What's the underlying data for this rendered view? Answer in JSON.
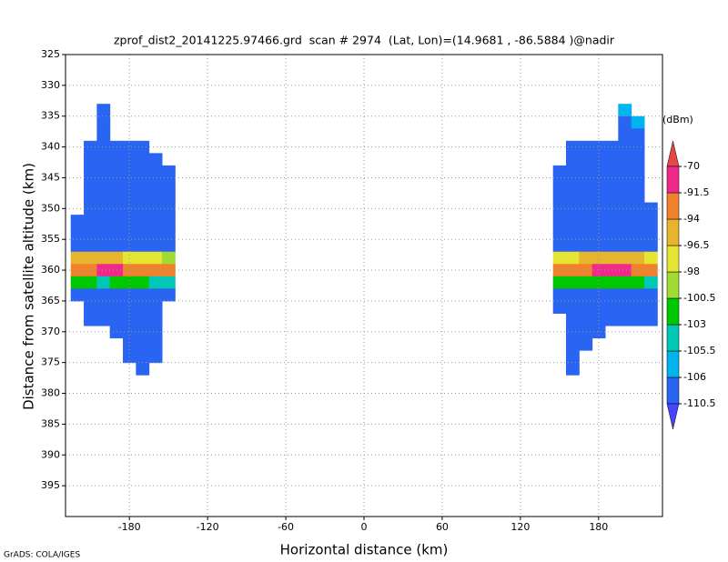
{
  "chart_data": {
    "type": "heatmap",
    "title": "zprof_dist2_20141225.97466.grd  scan # 2974  (Lat, Lon)=(14.9681 , -86.5884 )@nadir",
    "x_label": "Horizontal distance (km)",
    "y_label": "Distance from satellite altitude (km)",
    "footer": "GrADS: COLA/IGES",
    "colorbar_label": "(dBm)",
    "xlim": [
      -229,
      229
    ],
    "xticks": [
      -180,
      -120,
      -60,
      0,
      60,
      120,
      180
    ],
    "ylim": [
      325,
      400
    ],
    "y_inverted": true,
    "yticks": [
      325,
      330,
      335,
      340,
      345,
      350,
      355,
      360,
      365,
      370,
      375,
      380,
      385,
      390,
      395
    ],
    "grid": true,
    "levels": [
      -110.5,
      -106,
      -105.5,
      -103,
      -100.5,
      -98,
      -96.5,
      -94,
      -91.5,
      -70
    ],
    "colors": [
      "#4646ff",
      "#2a64f2",
      "#00b4f0",
      "#00c8b4",
      "#00c800",
      "#a0dc32",
      "#e6e632",
      "#e6b42d",
      "#f0822d",
      "#f0288c",
      "#e64646"
    ],
    "x": [
      -220,
      -210,
      -200,
      -190,
      -180,
      -170,
      -160,
      -150,
      150,
      160,
      170,
      180,
      190,
      200,
      210,
      220
    ],
    "y": [
      334,
      336,
      338,
      340,
      342,
      344,
      346,
      348,
      350,
      352,
      354,
      356,
      358,
      360,
      362,
      364,
      366,
      368,
      370,
      372,
      374,
      376
    ],
    "values": [
      [
        null,
        null,
        -108,
        null,
        null,
        null,
        null,
        null,
        null,
        null,
        null,
        null,
        null,
        -106,
        null,
        null
      ],
      [
        null,
        null,
        -110,
        null,
        null,
        null,
        null,
        null,
        null,
        null,
        null,
        null,
        null,
        -107,
        -106,
        null
      ],
      [
        null,
        null,
        -110,
        null,
        null,
        null,
        null,
        null,
        null,
        null,
        null,
        null,
        null,
        -108,
        -108,
        null
      ],
      [
        null,
        -110,
        -110,
        -110,
        -110,
        -110,
        null,
        null,
        null,
        -110,
        -110,
        -110,
        -110,
        -109,
        -110,
        null
      ],
      [
        null,
        -110,
        -110,
        -110,
        -110,
        -110,
        -110,
        null,
        null,
        -110,
        -110,
        -110,
        -110,
        -110,
        -110,
        null
      ],
      [
        null,
        -110,
        -110,
        -110,
        -110,
        -110,
        -110,
        -110,
        -110,
        -110,
        -110,
        -110,
        -110,
        -110,
        -110,
        null
      ],
      [
        null,
        -110,
        -109,
        -110,
        -110,
        -110,
        -110,
        -110,
        -110,
        -110,
        -110,
        -109,
        -110,
        -110,
        -110,
        null
      ],
      [
        null,
        -110,
        -110,
        -110,
        -110,
        -109,
        -110,
        -110,
        -110,
        -110,
        -110,
        -110,
        -110,
        -110,
        -110,
        null
      ],
      [
        null,
        -110,
        -110,
        -110,
        -110,
        -110,
        -110,
        -110,
        -110,
        -110,
        -110,
        -110,
        -110,
        -109,
        -110,
        -110
      ],
      [
        -110,
        -110,
        -110,
        -110,
        -110,
        -110,
        -110,
        -110,
        -110,
        -110,
        -110,
        -110,
        -110,
        -110,
        -110,
        -110
      ],
      [
        -110,
        -110,
        -110,
        -110,
        -110,
        -109,
        -107,
        -110,
        -110,
        -110,
        -110,
        -110,
        -110,
        -110,
        -109,
        -110
      ],
      [
        -109,
        -108,
        -110,
        -110,
        -108,
        -107,
        -108,
        -110,
        -110,
        -110,
        -110,
        -110,
        -108,
        -107,
        -108,
        -108
      ],
      [
        -96,
        -95,
        -95,
        -96,
        -97,
        -98,
        -98,
        -99,
        -97,
        -97,
        -96,
        -96,
        -95,
        -95,
        -96,
        -98
      ],
      [
        -92,
        -92,
        -91,
        -91,
        -92,
        -92,
        -92,
        -93,
        -92,
        -92,
        -92,
        -91,
        -91,
        -91,
        -92,
        -92
      ],
      [
        -103,
        -103,
        -104,
        -102,
        -101,
        -103,
        -104,
        -105,
        -103,
        -103,
        -102,
        -102,
        -101,
        -102,
        -103,
        -104
      ],
      [
        -110,
        -109,
        -110,
        -110,
        -110,
        -110,
        -110,
        -110,
        -110,
        -110,
        -109,
        -110,
        -110,
        -110,
        -110,
        -110
      ],
      [
        null,
        -110,
        -110,
        -110,
        -110,
        -110,
        -110,
        null,
        -110,
        -110,
        -110,
        -110,
        -110,
        -110,
        -110,
        -110
      ],
      [
        null,
        -110,
        -110,
        -110,
        -110,
        -110,
        -110,
        null,
        null,
        -110,
        -110,
        -110,
        -110,
        -110,
        -110,
        -110
      ],
      [
        null,
        null,
        null,
        -110,
        -110,
        -110,
        -110,
        null,
        null,
        -110,
        -110,
        -110,
        null,
        null,
        null,
        null
      ],
      [
        null,
        null,
        null,
        null,
        -110,
        -110,
        -110,
        null,
        null,
        -110,
        -110,
        null,
        null,
        null,
        null,
        null
      ],
      [
        null,
        null,
        null,
        null,
        -110,
        -110,
        -110,
        null,
        null,
        -110,
        null,
        null,
        null,
        null,
        null,
        null
      ],
      [
        null,
        null,
        null,
        null,
        null,
        -110,
        null,
        null,
        null,
        -110,
        null,
        null,
        null,
        null,
        null,
        null
      ]
    ]
  }
}
